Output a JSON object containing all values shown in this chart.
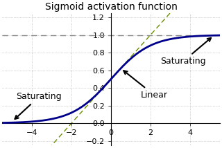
{
  "title": "Sigmoid activation function",
  "xlim": [
    -5.5,
    5.5
  ],
  "ylim": [
    -0.25,
    1.25
  ],
  "xticks": [
    -4,
    -2,
    0,
    2,
    4
  ],
  "yticks": [
    -0.2,
    0.0,
    0.2,
    0.4,
    0.6,
    0.8,
    1.0,
    1.2
  ],
  "sigmoid_color": "#00008B",
  "linear_color": "#6B8E00",
  "hline_y": 1.0,
  "hline_color": "#888888",
  "hline_style": "--",
  "background_color": "#ffffff",
  "grid_color": "#aaaaaa",
  "title_fontsize": 10,
  "annotation_fontsize": 9,
  "sat_left_text": "Saturating",
  "sat_right_text": "Saturating",
  "linear_text": "Linear"
}
